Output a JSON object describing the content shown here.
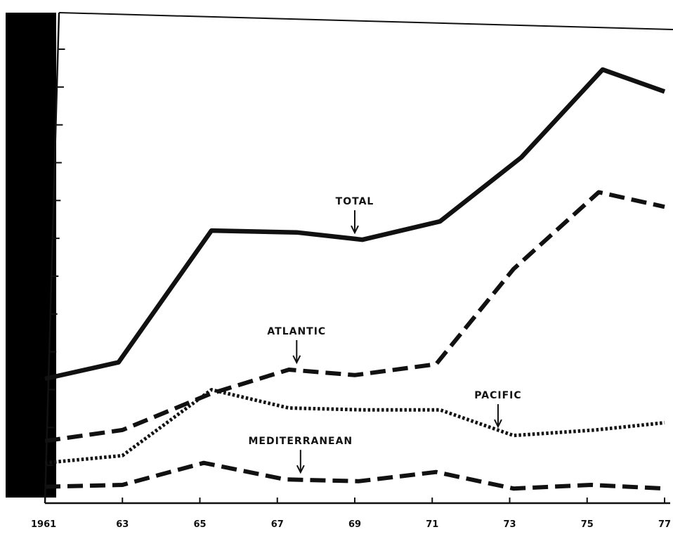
{
  "chart_data": {
    "type": "line",
    "title": "",
    "xlabel": "",
    "ylabel": "",
    "x": [
      1961,
      1963,
      1965,
      1967,
      1969,
      1971,
      1973,
      1975,
      1977
    ],
    "x_tick_labels": [
      "1961",
      "63",
      "65",
      "67",
      "69",
      "71",
      "73",
      "75",
      "77"
    ],
    "xlim": [
      1961,
      1977
    ],
    "y_tick_count": 12,
    "grid": false,
    "legend": "inline labels with arrows",
    "series": [
      {
        "name": "TOTAL",
        "style": "solid",
        "color": "#111111",
        "points": [
          [
            1961,
            3.4
          ],
          [
            1962.9,
            3.85
          ],
          [
            1965.3,
            7.45
          ],
          [
            1967.5,
            7.4
          ],
          [
            1969.2,
            7.2
          ],
          [
            1971.2,
            7.7
          ],
          [
            1973.3,
            9.45
          ],
          [
            1975.4,
            11.85
          ],
          [
            1977,
            11.25
          ]
        ]
      },
      {
        "name": "ATLANTIC",
        "style": "dashed",
        "color": "#111111",
        "points": [
          [
            1961,
            1.7
          ],
          [
            1963,
            2.0
          ],
          [
            1965.3,
            3.0
          ],
          [
            1967.3,
            3.65
          ],
          [
            1969,
            3.5
          ],
          [
            1971.1,
            3.8
          ],
          [
            1973.1,
            6.4
          ],
          [
            1975.3,
            8.5
          ],
          [
            1977,
            8.1
          ]
        ]
      },
      {
        "name": "PACIFIC",
        "style": "dotted",
        "color": "#111111",
        "points": [
          [
            1961,
            1.1
          ],
          [
            1963,
            1.3
          ],
          [
            1965.3,
            3.1
          ],
          [
            1967.3,
            2.6
          ],
          [
            1969.2,
            2.55
          ],
          [
            1971.2,
            2.55
          ],
          [
            1973.1,
            1.85
          ],
          [
            1975.2,
            2.0
          ],
          [
            1977,
            2.2
          ]
        ]
      },
      {
        "name": "MEDITERRANEAN",
        "style": "dashed",
        "color": "#111111",
        "points": [
          [
            1961,
            0.45
          ],
          [
            1963,
            0.5
          ],
          [
            1965.1,
            1.1
          ],
          [
            1967.2,
            0.65
          ],
          [
            1969.1,
            0.6
          ],
          [
            1971.1,
            0.85
          ],
          [
            1973.1,
            0.4
          ],
          [
            1975.1,
            0.5
          ],
          [
            1977,
            0.4
          ]
        ]
      }
    ],
    "annotations": [
      {
        "text": "TOTAL",
        "x": 1969.0,
        "y": 7.2
      },
      {
        "text": "ATLANTIC",
        "x": 1967.5,
        "y": 3.65
      },
      {
        "text": "PACIFIC",
        "x": 1972.7,
        "y": 1.9
      },
      {
        "text": "MEDITERRANEAN",
        "x": 1967.6,
        "y": 0.65
      }
    ]
  }
}
